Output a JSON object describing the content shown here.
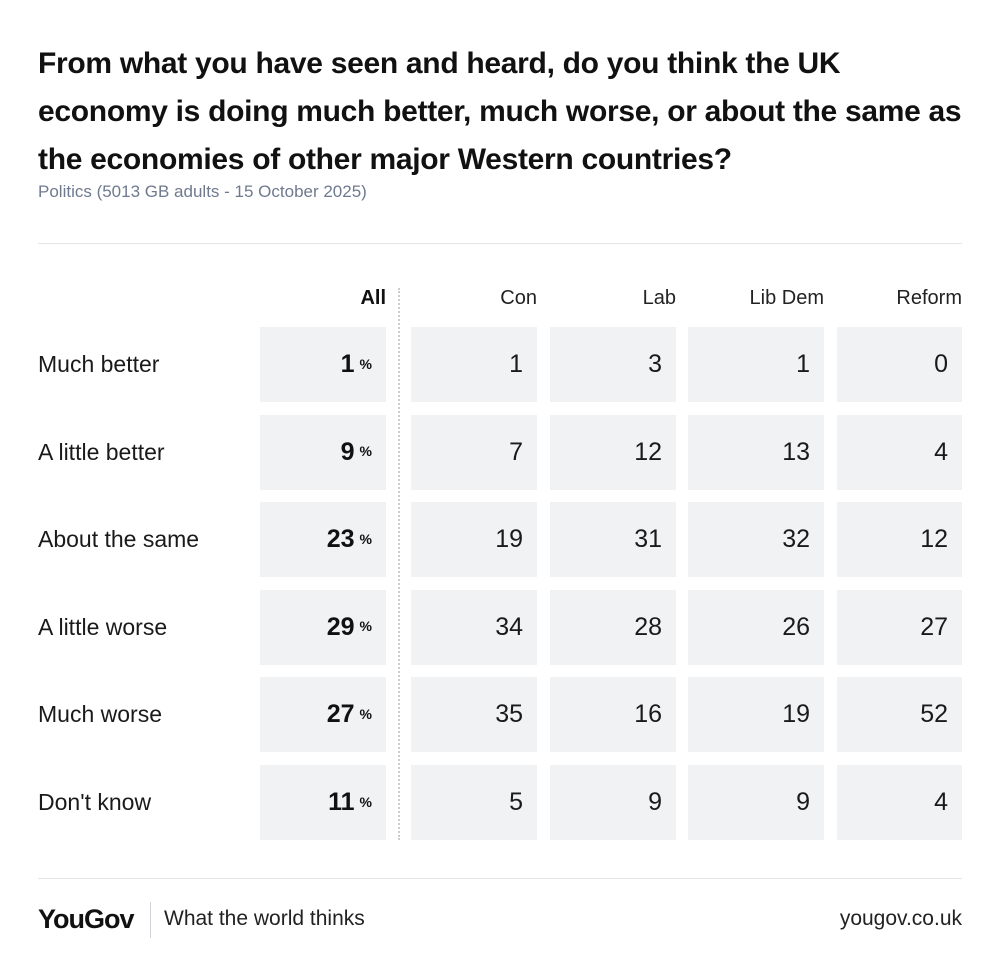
{
  "header": {
    "title": "From what you have seen and heard, do you think the UK economy is doing much better, much worse, or about the same as the economies of other major Western countries?",
    "subtitle": "Politics (5013 GB adults - 15 October 2025)"
  },
  "footer": {
    "brand": "YouGov",
    "tagline": "What the world thinks",
    "url": "yougov.co.uk"
  },
  "chart_data": {
    "type": "table",
    "title": "From what you have seen and heard, do you think the UK economy is doing much better, much worse, or about the same as the economies of other major Western countries?",
    "subtitle": "Politics (5013 GB adults - 15 October 2025)",
    "unit": "%",
    "columns": [
      "All",
      "Con",
      "Lab",
      "Lib Dem",
      "Reform"
    ],
    "rows": [
      {
        "label": "Much better",
        "values": [
          1,
          1,
          3,
          1,
          0
        ]
      },
      {
        "label": "A little better",
        "values": [
          9,
          7,
          12,
          13,
          4
        ]
      },
      {
        "label": "About the same",
        "values": [
          23,
          19,
          31,
          32,
          12
        ]
      },
      {
        "label": "A little worse",
        "values": [
          29,
          34,
          28,
          26,
          27
        ]
      },
      {
        "label": "Much worse",
        "values": [
          27,
          35,
          16,
          19,
          52
        ]
      },
      {
        "label": "Don't know",
        "values": [
          11,
          5,
          9,
          9,
          4
        ]
      }
    ]
  }
}
